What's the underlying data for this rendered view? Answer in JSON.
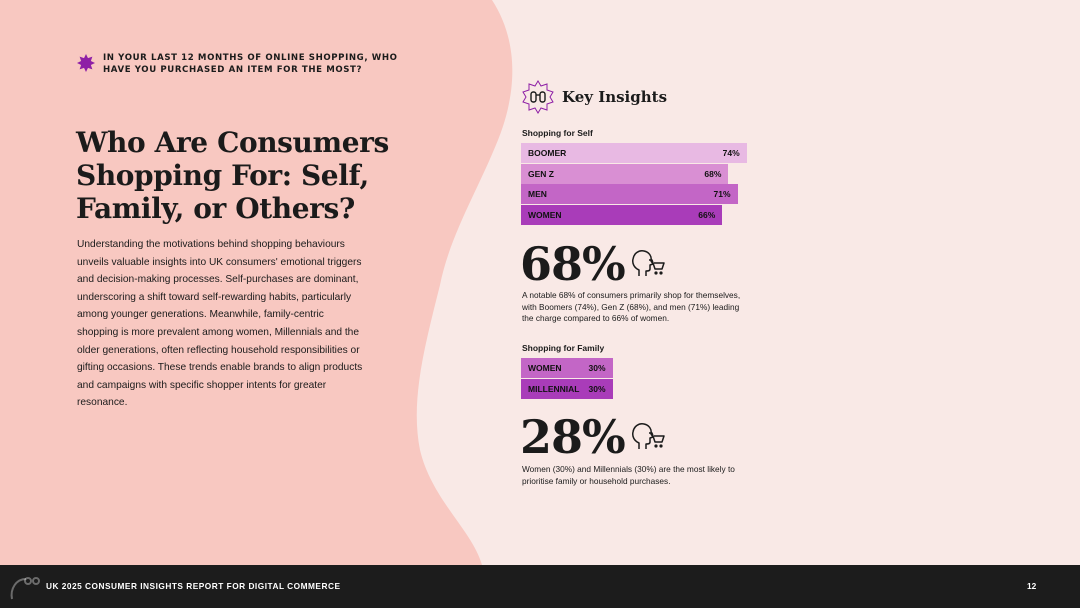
{
  "kicker": {
    "text": "IN YOUR LAST 12 MONTHS OF ONLINE SHOPPING, WHO HAVE YOU PURCHASED AN ITEM FOR THE MOST?",
    "icon": "starburst-icon"
  },
  "title": "Who Are Consumers Shopping For: Self, Family, or Others?",
  "body": "Understanding the motivations behind shopping behaviours unveils valuable insights into UK consumers' emotional triggers and decision-making processes. Self-purchases are dominant, underscoring a shift toward self-rewarding habits, particularly among younger generations. Meanwhile, family-centric shopping is more prevalent among women, Millennials and the older generations, often reflecting household responsibilities or gifting occasions. These trends enable brands to align products and campaigns with specific shopper intents for greater resonance.",
  "key_insights": {
    "title": "Key Insights",
    "icon": "binoculars-icon",
    "self": {
      "label": "Shopping for Self",
      "bars": [
        {
          "name": "BOOMER",
          "label": "74%",
          "value": 74,
          "color": "#e8b9e3"
        },
        {
          "name": "GEN Z",
          "label": "68%",
          "value": 68,
          "color": "#d98fd3"
        },
        {
          "name": "MEN",
          "label": "71%",
          "value": 71,
          "color": "#c366c6"
        },
        {
          "name": "WOMEN",
          "label": "66%",
          "value": 66,
          "color": "#a93cb9"
        }
      ],
      "stat": "68%",
      "stat_icon": "head-cart-icon",
      "caption": "A notable 68% of consumers primarily shop for themselves, with Boomers (74%), Gen Z (68%), and men (71%) leading the charge compared to 66% of women."
    },
    "family": {
      "label": "Shopping for Family",
      "bars": [
        {
          "name": "WOMEN",
          "label": "30%",
          "value": 30,
          "color": "#c366c6"
        },
        {
          "name": "MILLENNIAL",
          "label": "30%",
          "value": 30,
          "color": "#a93cb9"
        }
      ],
      "stat": "28%",
      "stat_icon": "head-cart-icon",
      "caption": "Women (30%) and Millennials (30%) are the most likely to prioritise family or household purchases."
    }
  },
  "footer": {
    "text": "UK 2025 CONSUMER INSIGHTS REPORT FOR DIGITAL COMMERCE",
    "page": "12"
  },
  "colors": {
    "blob": "#f8c8c1",
    "background": "#f9e9e6",
    "accent": "#8e1fa6",
    "footer": "#1c1c1c"
  }
}
